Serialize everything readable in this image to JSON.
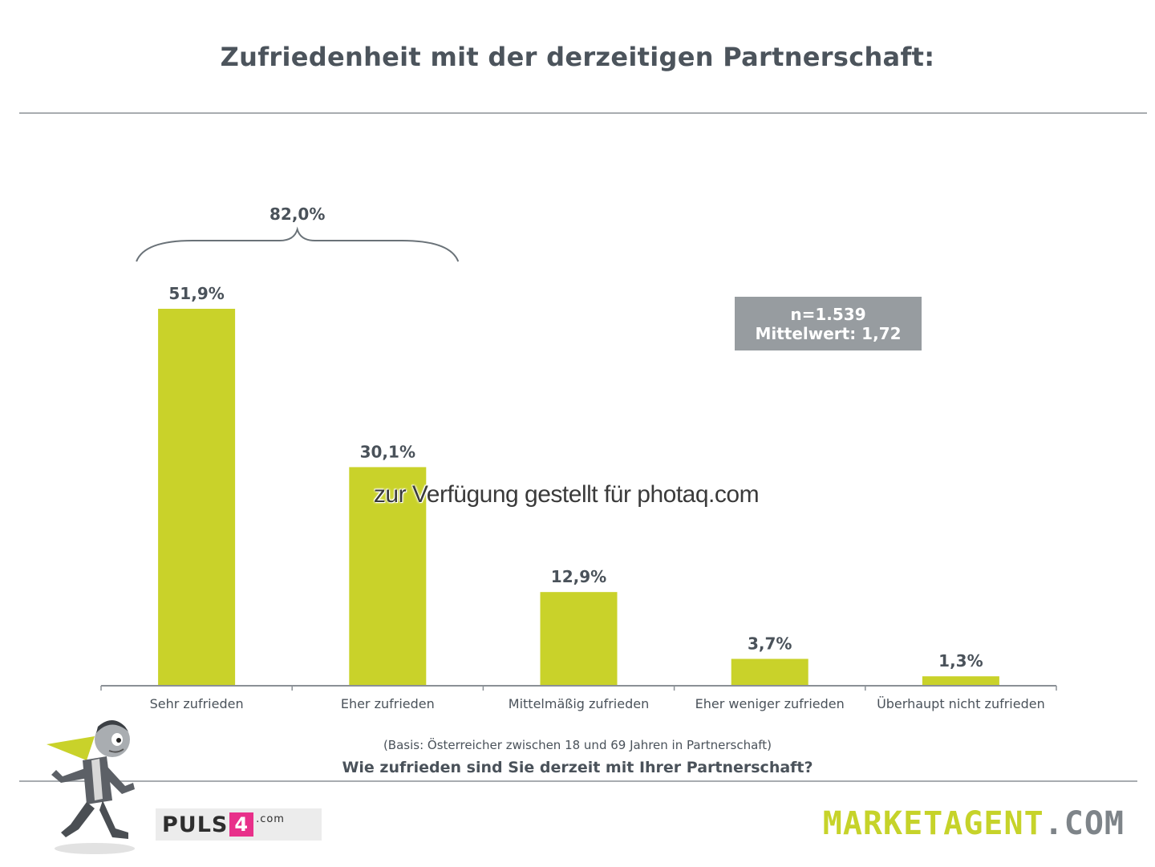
{
  "title": "Zufriedenheit mit der derzeitigen Partnerschaft:",
  "info_box": {
    "line1": "n=1.539",
    "line2": "Mittelwert: 1,72"
  },
  "watermark": "zur Verfügung gestellt für photaq.com",
  "basis": "(Basis: Österreicher zwischen 18 und 69 Jahren in Partnerschaft)",
  "question": "Wie zufrieden sind Sie derzeit mit Ihrer Partnerschaft?",
  "logos": {
    "puls_text": "PULS",
    "puls_box": "4",
    "puls_suffix": ".com",
    "marketagent_a": "MARKETAGENT",
    "marketagent_b": ".COM"
  },
  "colors": {
    "bar": "#c9d22a",
    "text": "#4a525a",
    "info_box": "#979ca0",
    "axis": "#8a9096"
  },
  "chart_data": {
    "type": "bar",
    "categories": [
      "Sehr zufrieden",
      "Eher zufrieden",
      "Mittelmäßig zufrieden",
      "Eher weniger zufrieden",
      "Überhaupt nicht zufrieden"
    ],
    "values": [
      51.9,
      30.1,
      12.9,
      3.7,
      1.3
    ],
    "value_labels": [
      "51,9%",
      "30,1%",
      "12,9%",
      "3,7%",
      "1,3%"
    ],
    "ylim": [
      0,
      51.9
    ],
    "grid": false,
    "legend": "none",
    "annotation": {
      "label": "82,0%",
      "spans": [
        "Sehr zufrieden",
        "Eher zufrieden"
      ]
    }
  }
}
